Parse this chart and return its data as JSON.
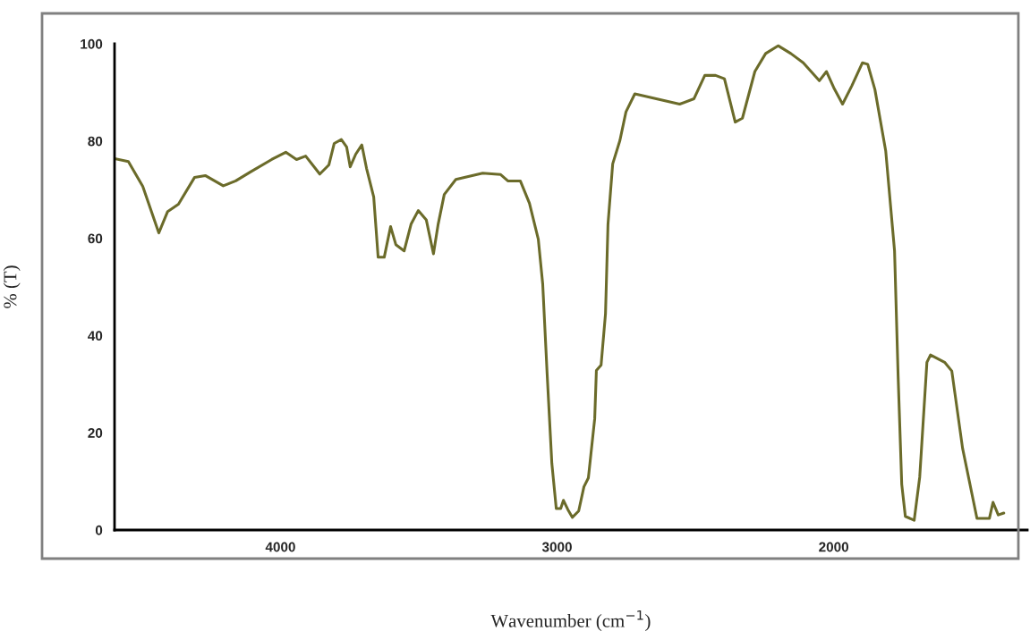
{
  "chart_data": {
    "type": "line",
    "xlabel": "Wavenumber (cm$^{−1}$)",
    "ylabel": "% (T)",
    "xlim": [
      4600,
      1300
    ],
    "xticks": [
      4000,
      3000,
      2000
    ],
    "ylim": [
      0,
      100
    ],
    "yticks": [
      0,
      20,
      40,
      60,
      80,
      100
    ],
    "grid": false,
    "series": [
      {
        "color": "#6b6b2a",
        "x": [
          4600,
          4550,
          4498,
          4440,
          4408,
          4369,
          4311,
          4272,
          4207,
          4162,
          4110,
          4032,
          3981,
          3942,
          3909,
          3858,
          3825,
          3806,
          3780,
          3761,
          3748,
          3728,
          3706,
          3689,
          3663,
          3647,
          3625,
          3602,
          3583,
          3553,
          3528,
          3502,
          3473,
          3447,
          3430,
          3408,
          3366,
          3269,
          3204,
          3178,
          3133,
          3100,
          3068,
          3052,
          3036,
          3019,
          3003,
          2987,
          2977,
          2961,
          2945,
          2922,
          2903,
          2887,
          2864,
          2858,
          2841,
          2825,
          2816,
          2799,
          2773,
          2751,
          2719,
          2557,
          2505,
          2466,
          2427,
          2395,
          2356,
          2330,
          2285,
          2246,
          2201,
          2155,
          2110,
          2052,
          2026,
          2000,
          1968,
          1935,
          1896,
          1877,
          1851,
          1812,
          1780,
          1767,
          1754,
          1741,
          1709,
          1689,
          1663,
          1650,
          1599,
          1573,
          1534,
          1482,
          1437,
          1424,
          1405,
          1385
        ],
        "values": [
          76.4,
          75.8,
          70.7,
          61.1,
          65.5,
          67,
          72.5,
          72.9,
          70.8,
          71.8,
          73.6,
          76.2,
          77.7,
          76.2,
          76.9,
          73.2,
          75.1,
          79.5,
          80.3,
          78.8,
          74.7,
          77.3,
          79.2,
          74.4,
          68.5,
          56.1,
          56.1,
          62.4,
          58.7,
          57.4,
          62.9,
          65.7,
          63.8,
          56.8,
          62.9,
          69.0,
          72.1,
          73.4,
          73.1,
          71.8,
          71.8,
          67.2,
          59.8,
          50.6,
          32.1,
          13.7,
          4.4,
          4.4,
          6.1,
          4.2,
          2.6,
          3.9,
          8.9,
          10.7,
          22.9,
          32.8,
          33.9,
          44.5,
          62.9,
          75.3,
          80.1,
          86.0,
          89.7,
          87.6,
          88.7,
          93.5,
          93.5,
          92.8,
          83.9,
          84.7,
          94.3,
          98.0,
          99.6,
          98.0,
          96.1,
          92.4,
          94.3,
          91.0,
          87.6,
          91.3,
          96.1,
          95.8,
          90.6,
          78.0,
          57.4,
          31.5,
          9.4,
          2.8,
          2.0,
          10.9,
          34.5,
          36.0,
          34.5,
          32.7,
          16.8,
          2.4,
          2.4,
          5.7,
          3.1,
          3.5
        ]
      }
    ]
  }
}
